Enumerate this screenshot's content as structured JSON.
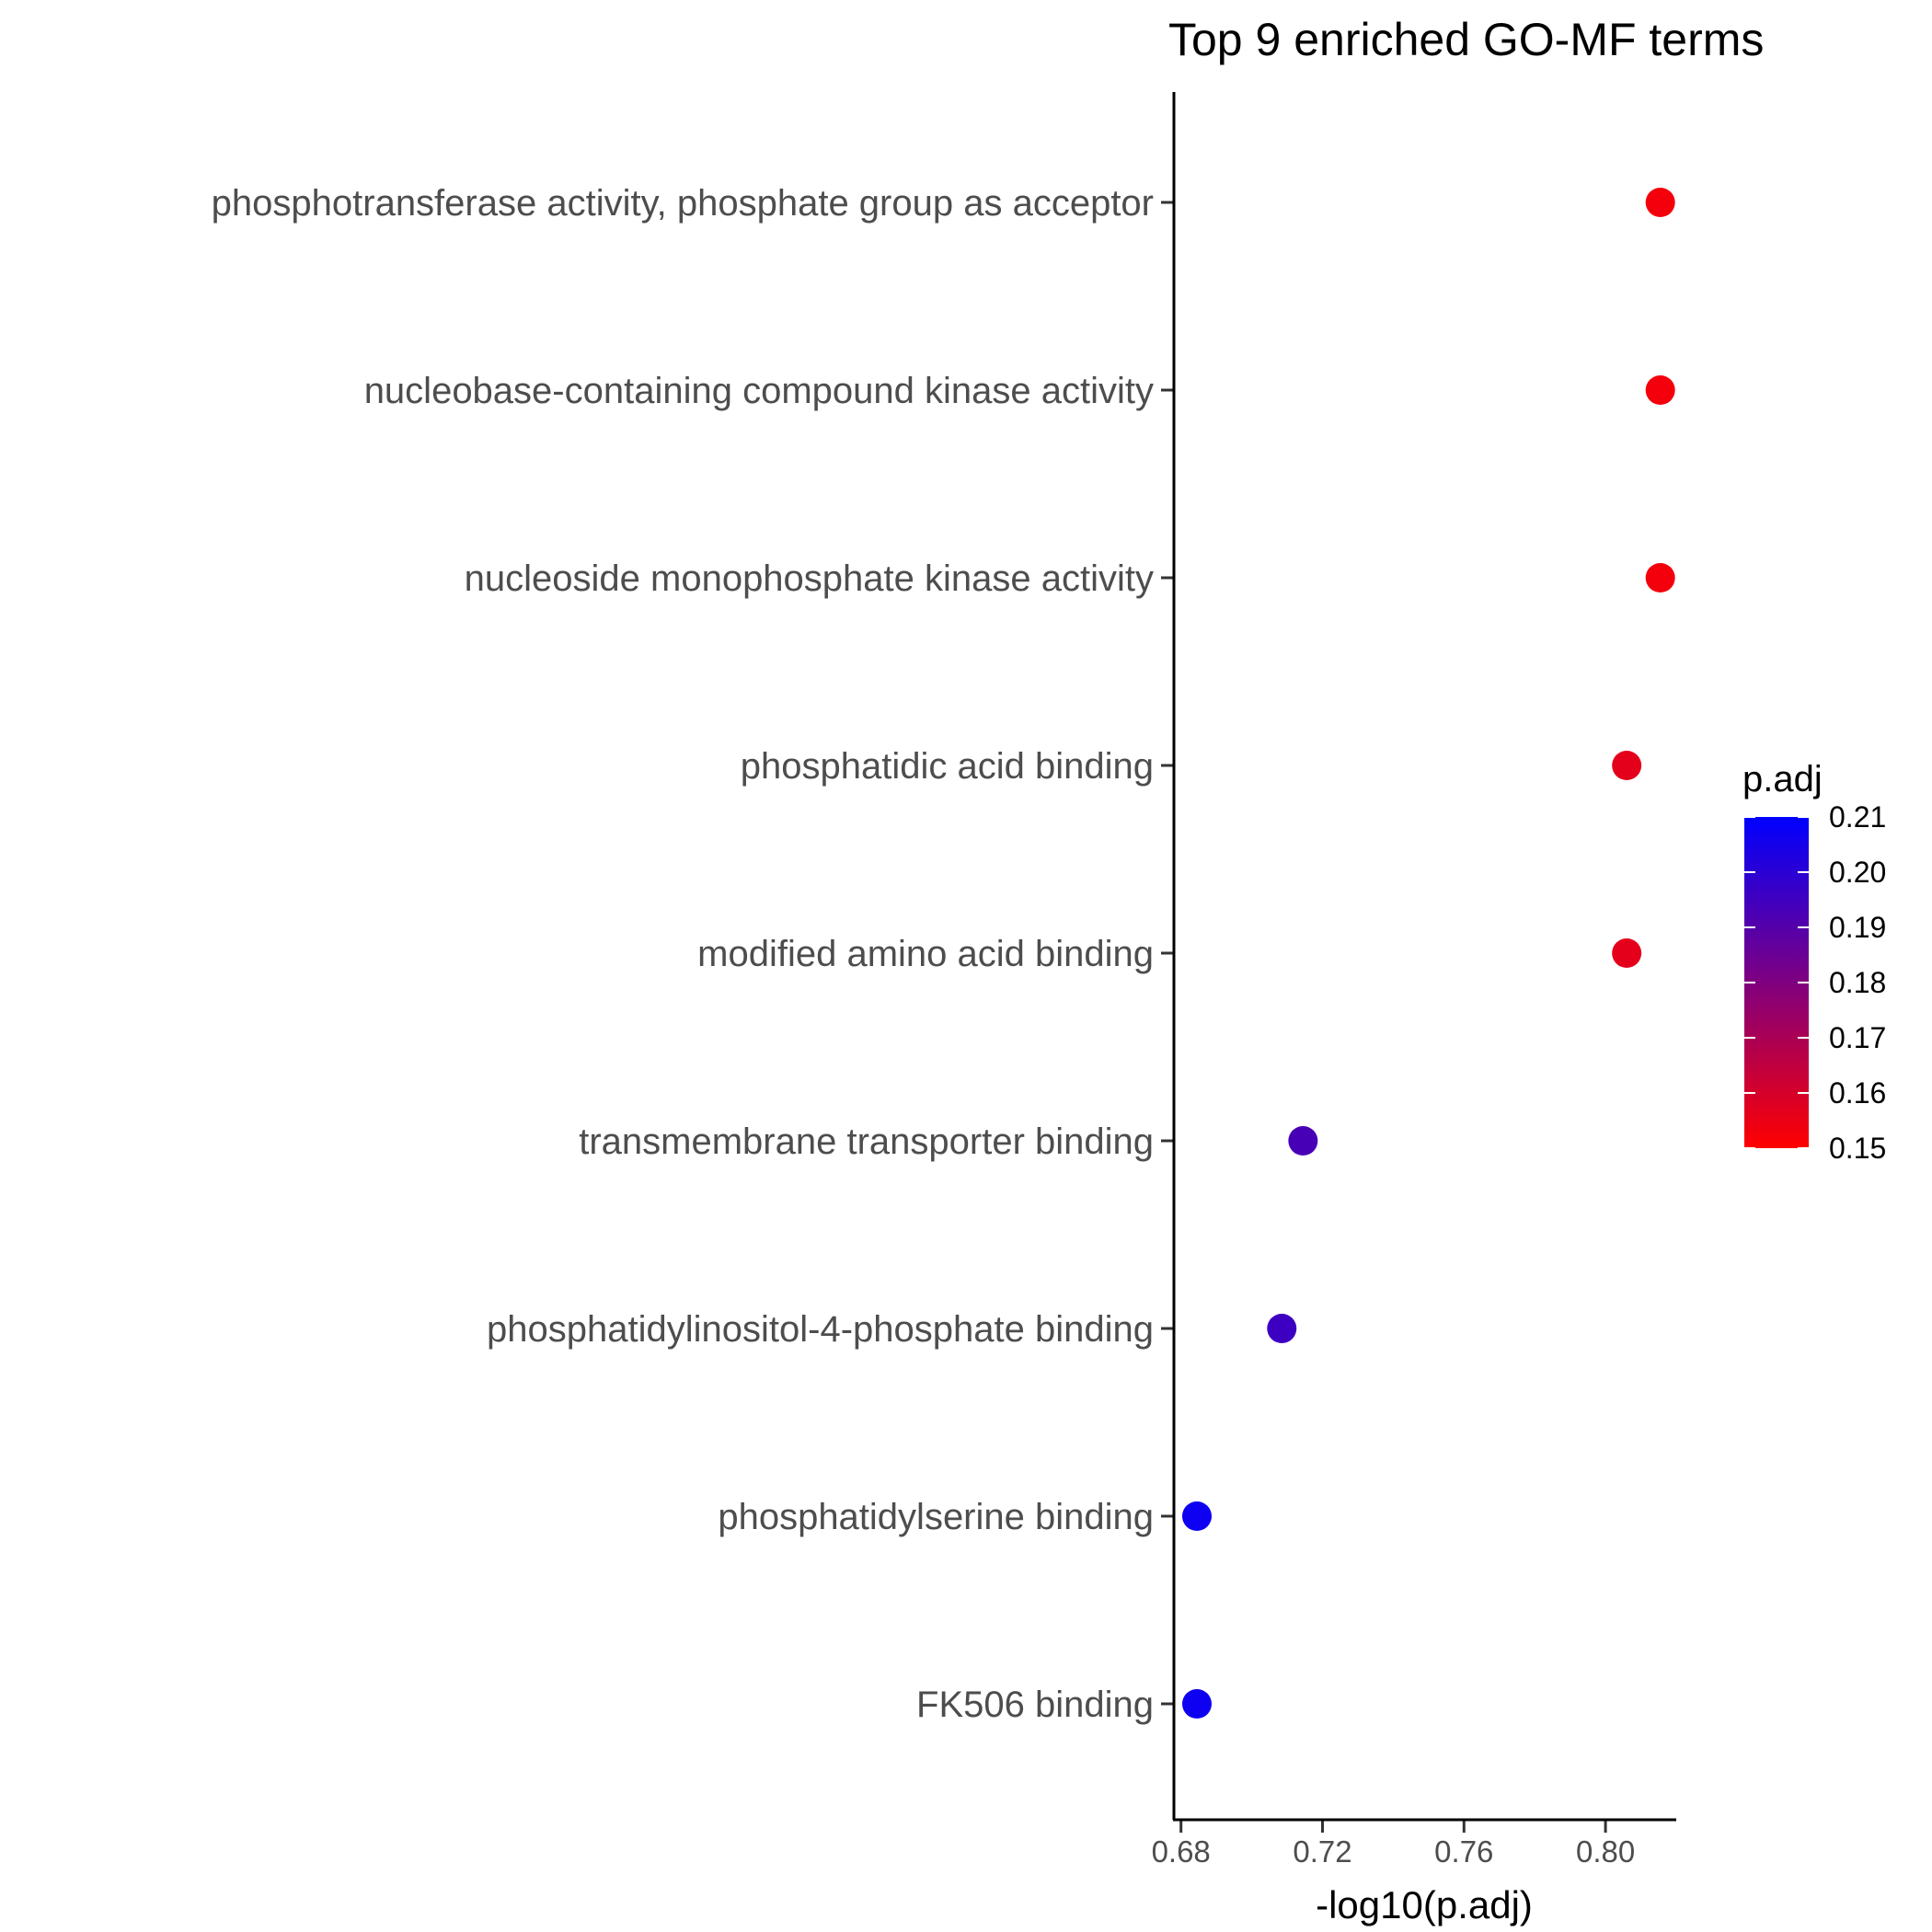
{
  "chart_data": {
    "type": "scatter",
    "title": "Top  9  enriched GO-MF terms",
    "xlabel": "-log10(p.adj)",
    "ylabel": "",
    "xlim": [
      0.678,
      0.82
    ],
    "x_ticks": [
      "0.68",
      "0.72",
      "0.76",
      "0.80"
    ],
    "x_tick_values": [
      0.68,
      0.72,
      0.76,
      0.8
    ],
    "grid": false,
    "categories": [
      "phosphotransferase activity, phosphate group as acceptor",
      "nucleobase-containing compound kinase activity",
      "nucleoside monophosphate kinase activity",
      "phosphatidic acid binding",
      "modified amino acid binding",
      "transmembrane transporter binding",
      "phosphatidylinositol-4-phosphate binding",
      "phosphatidylserine binding",
      "FK506 binding"
    ],
    "x": [
      0.8155,
      0.8155,
      0.8155,
      0.806,
      0.806,
      0.7145,
      0.7085,
      0.6845,
      0.6845
    ],
    "p_adj": [
      0.1529,
      0.1529,
      0.1529,
      0.1563,
      0.1563,
      0.193,
      0.1956,
      0.2067,
      0.2067
    ],
    "color_scale": {
      "title": "p.adj",
      "low_color": "#ff0000",
      "high_color": "#0000ff",
      "range": [
        0.15,
        0.21
      ],
      "ticks": [
        "0.21",
        "0.20",
        "0.19",
        "0.18",
        "0.17",
        "0.16",
        "0.15"
      ],
      "tick_values": [
        0.21,
        0.2,
        0.19,
        0.18,
        0.17,
        0.16,
        0.15
      ],
      "placement": "right"
    }
  }
}
